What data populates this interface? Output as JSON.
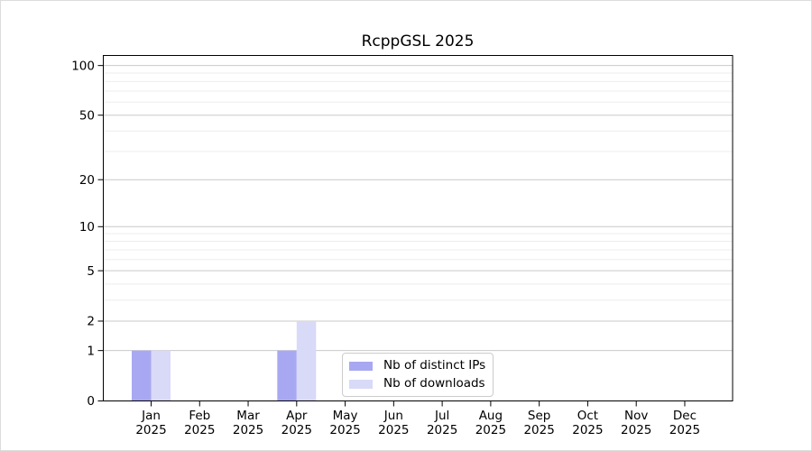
{
  "figure": {
    "background": "#ffffff",
    "outer_border_color": "#dcdcdc"
  },
  "chart_data": {
    "type": "bar",
    "title": "RcppGSL 2025",
    "x": {
      "months": [
        "Jan",
        "Feb",
        "Mar",
        "Apr",
        "May",
        "Jun",
        "Jul",
        "Aug",
        "Sep",
        "Oct",
        "Nov",
        "Dec"
      ],
      "year": "2025"
    },
    "series": [
      {
        "name": "Nb of distinct IPs",
        "color": "#a8a8f2",
        "values": [
          1,
          0,
          0,
          1,
          0,
          0,
          0,
          0,
          0,
          0,
          0,
          0
        ]
      },
      {
        "name": "Nb of downloads",
        "color": "#d9d9f8",
        "values": [
          1,
          0,
          0,
          2,
          0,
          0,
          0,
          0,
          0,
          0,
          0,
          0
        ]
      }
    ],
    "y_axis": {
      "scale": "log1p",
      "tick_values": [
        0,
        1,
        2,
        5,
        10,
        20,
        50,
        100
      ],
      "top_value": 115,
      "major_gridlines": [
        1,
        2,
        5,
        10,
        20,
        50,
        100
      ],
      "minor_gridlines": [
        3,
        4,
        6,
        7,
        8,
        9,
        30,
        40,
        60,
        70,
        80,
        90
      ],
      "major_grid_color": "#c9c9c9",
      "minor_grid_color": "#ededed"
    },
    "legend": {
      "position": "inside-bottom-left-of-center",
      "border_color": "#cccccc",
      "background": "#ffffff"
    },
    "axis_color": "#000000",
    "text_color": "#000000",
    "grid": "horizontal"
  }
}
